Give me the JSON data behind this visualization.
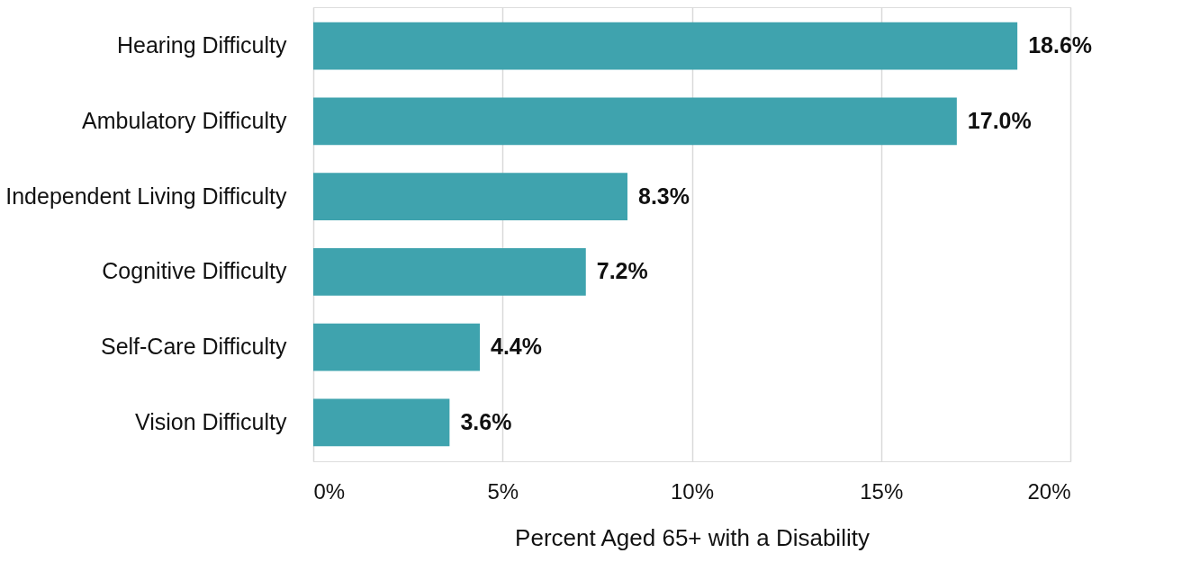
{
  "chart_data": {
    "type": "bar",
    "orientation": "horizontal",
    "categories": [
      "Hearing Difficulty",
      "Ambulatory Difficulty",
      "Independent Living Difficulty",
      "Cognitive Difficulty",
      "Self-Care Difficulty",
      "Vision Difficulty"
    ],
    "values": [
      18.6,
      17.0,
      8.3,
      7.2,
      4.4,
      3.6
    ],
    "value_labels": [
      "18.6%",
      "17.0%",
      "8.3%",
      "7.2%",
      "4.4%",
      "3.6%"
    ],
    "color": "#3fa3ae",
    "xlabel": "Percent Aged 65+ with a Disability",
    "xlim": [
      0,
      20
    ],
    "xticks": [
      {
        "value": 0,
        "label": "0%"
      },
      {
        "value": 5,
        "label": "5%"
      },
      {
        "value": 10,
        "label": "10%"
      },
      {
        "value": 15,
        "label": "15%"
      },
      {
        "value": 20,
        "label": "20%"
      }
    ],
    "grid": "x"
  }
}
